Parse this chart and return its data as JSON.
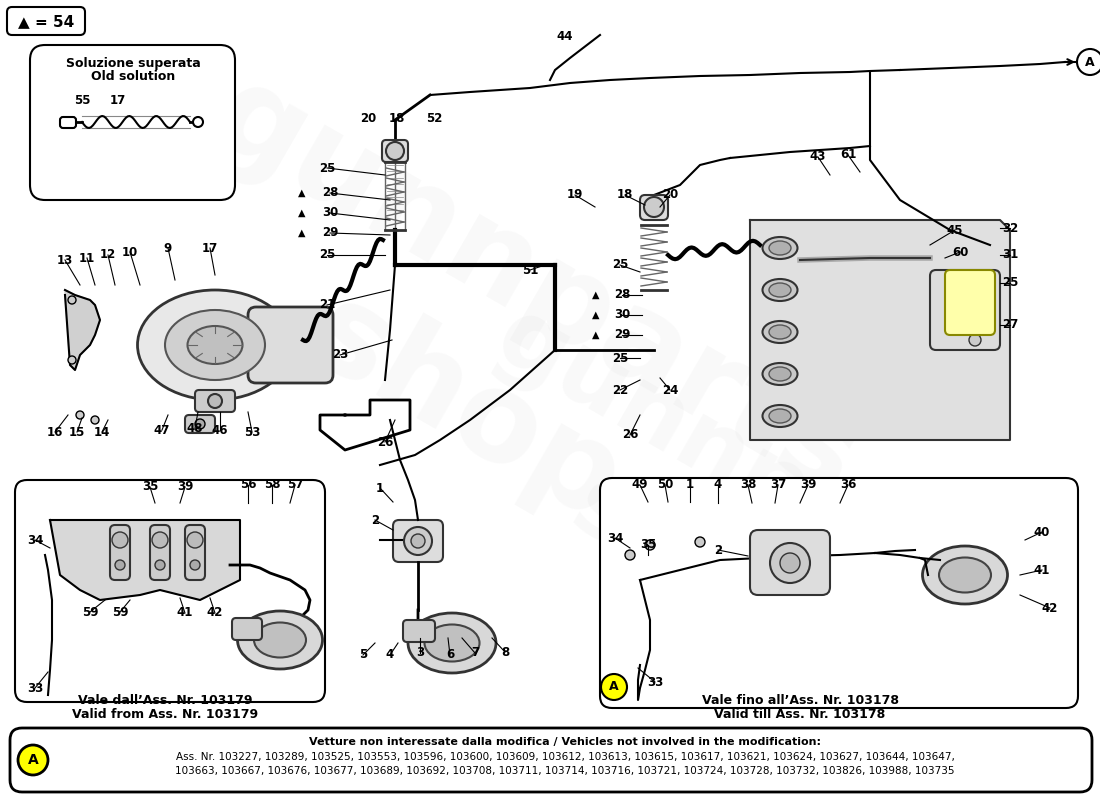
{
  "bg_color": "#ffffff",
  "triangle_label": "▲ = 54",
  "old_solution_title_line1": "Soluzione superata",
  "old_solution_title_line2": "Old solution",
  "bottom_box_text_line1": "Vetture non interessate dalla modifica / Vehicles not involved in the modification:",
  "bottom_box_text_line2": "Ass. Nr. 103227, 103289, 103525, 103553, 103596, 103600, 103609, 103612, 103613, 103615, 103617, 103621, 103624, 103627, 103644, 103647,",
  "bottom_box_text_line3": "103663, 103667, 103676, 103677, 103689, 103692, 103708, 103711, 103714, 103716, 103721, 103724, 103728, 103732, 103826, 103988, 103735",
  "left_bottom_caption_line1": "Vale dall’Ass. Nr. 103179",
  "left_bottom_caption_line2": "Valid from Ass. Nr. 103179",
  "right_bottom_caption_line1": "Vale fino all’Ass. Nr. 103178",
  "right_bottom_caption_line2": "Valid till Ass. Nr. 103178",
  "circle_A_label": "A",
  "yellow_highlight": "#ffff00",
  "watermark_color": "#c8c8c8"
}
